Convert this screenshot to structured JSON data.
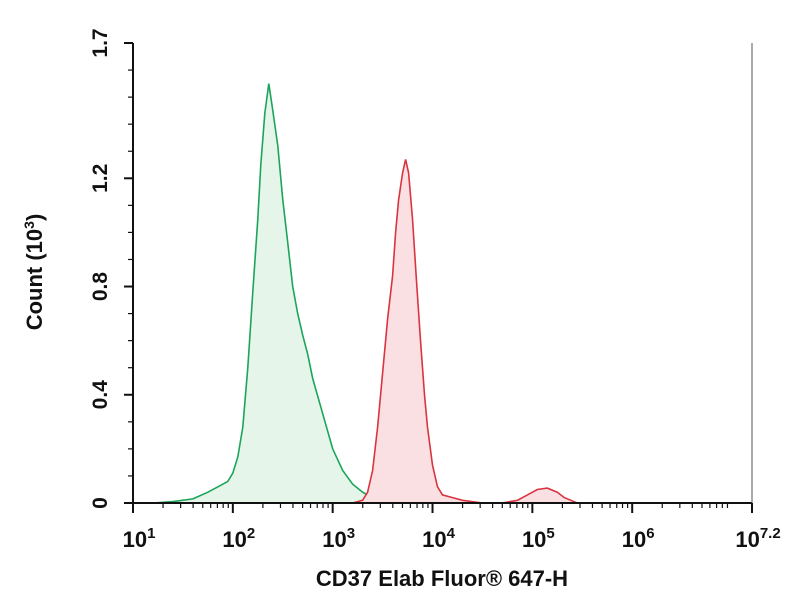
{
  "chart_data": {
    "type": "area",
    "xlabel": "CD37 Elab Fluor® 647-H",
    "ylabel_main": "Count (10",
    "ylabel_sup": "3",
    "ylabel_end": ")",
    "x_scale": "log",
    "xlim": [
      1,
      7.2
    ],
    "ylim": [
      0,
      1.7
    ],
    "x_ticks": [
      {
        "base": "10",
        "exp": "1"
      },
      {
        "base": "10",
        "exp": "2"
      },
      {
        "base": "10",
        "exp": "3"
      },
      {
        "base": "10",
        "exp": "4"
      },
      {
        "base": "10",
        "exp": "5"
      },
      {
        "base": "10",
        "exp": "6"
      },
      {
        "base": "10",
        "exp": "7.2"
      }
    ],
    "y_ticks": [
      "0",
      "0.4",
      "0.8",
      "1.2",
      "1.7"
    ],
    "y_tick_values": [
      0,
      0.4,
      0.8,
      1.2,
      1.7
    ],
    "grid": false,
    "series": [
      {
        "color": "#1aa55a",
        "fill": "#e6f5ea",
        "points": [
          [
            1.0,
            0.0
          ],
          [
            1.2,
            0.0
          ],
          [
            1.4,
            0.005
          ],
          [
            1.6,
            0.015
          ],
          [
            1.75,
            0.04
          ],
          [
            1.85,
            0.06
          ],
          [
            1.95,
            0.08
          ],
          [
            2.0,
            0.11
          ],
          [
            2.05,
            0.17
          ],
          [
            2.1,
            0.28
          ],
          [
            2.15,
            0.5
          ],
          [
            2.2,
            0.78
          ],
          [
            2.25,
            1.05
          ],
          [
            2.28,
            1.25
          ],
          [
            2.32,
            1.44
          ],
          [
            2.36,
            1.55
          ],
          [
            2.4,
            1.45
          ],
          [
            2.45,
            1.32
          ],
          [
            2.5,
            1.12
          ],
          [
            2.55,
            0.96
          ],
          [
            2.6,
            0.8
          ],
          [
            2.65,
            0.7
          ],
          [
            2.7,
            0.62
          ],
          [
            2.75,
            0.55
          ],
          [
            2.8,
            0.46
          ],
          [
            2.9,
            0.33
          ],
          [
            3.0,
            0.2
          ],
          [
            3.1,
            0.12
          ],
          [
            3.2,
            0.07
          ],
          [
            3.3,
            0.04
          ],
          [
            3.4,
            0.02
          ],
          [
            3.55,
            0.01
          ],
          [
            3.7,
            0.0
          ]
        ]
      },
      {
        "color": "#d9343f",
        "fill": "#fbe0e3",
        "points": [
          [
            3.0,
            0.0
          ],
          [
            3.2,
            0.0
          ],
          [
            3.3,
            0.01
          ],
          [
            3.35,
            0.04
          ],
          [
            3.4,
            0.12
          ],
          [
            3.45,
            0.28
          ],
          [
            3.5,
            0.48
          ],
          [
            3.55,
            0.68
          ],
          [
            3.6,
            0.84
          ],
          [
            3.63,
            1.0
          ],
          [
            3.66,
            1.12
          ],
          [
            3.7,
            1.22
          ],
          [
            3.73,
            1.27
          ],
          [
            3.76,
            1.22
          ],
          [
            3.8,
            1.05
          ],
          [
            3.84,
            0.82
          ],
          [
            3.88,
            0.6
          ],
          [
            3.92,
            0.4
          ],
          [
            3.95,
            0.28
          ],
          [
            4.0,
            0.14
          ],
          [
            4.05,
            0.06
          ],
          [
            4.1,
            0.03
          ],
          [
            4.2,
            0.02
          ],
          [
            4.3,
            0.01
          ],
          [
            4.5,
            0.0
          ],
          [
            4.7,
            0.0
          ],
          [
            4.85,
            0.01
          ],
          [
            4.95,
            0.03
          ],
          [
            5.05,
            0.05
          ],
          [
            5.15,
            0.055
          ],
          [
            5.25,
            0.04
          ],
          [
            5.32,
            0.02
          ],
          [
            5.45,
            0.0
          ],
          [
            5.6,
            0.0
          ]
        ]
      }
    ]
  }
}
